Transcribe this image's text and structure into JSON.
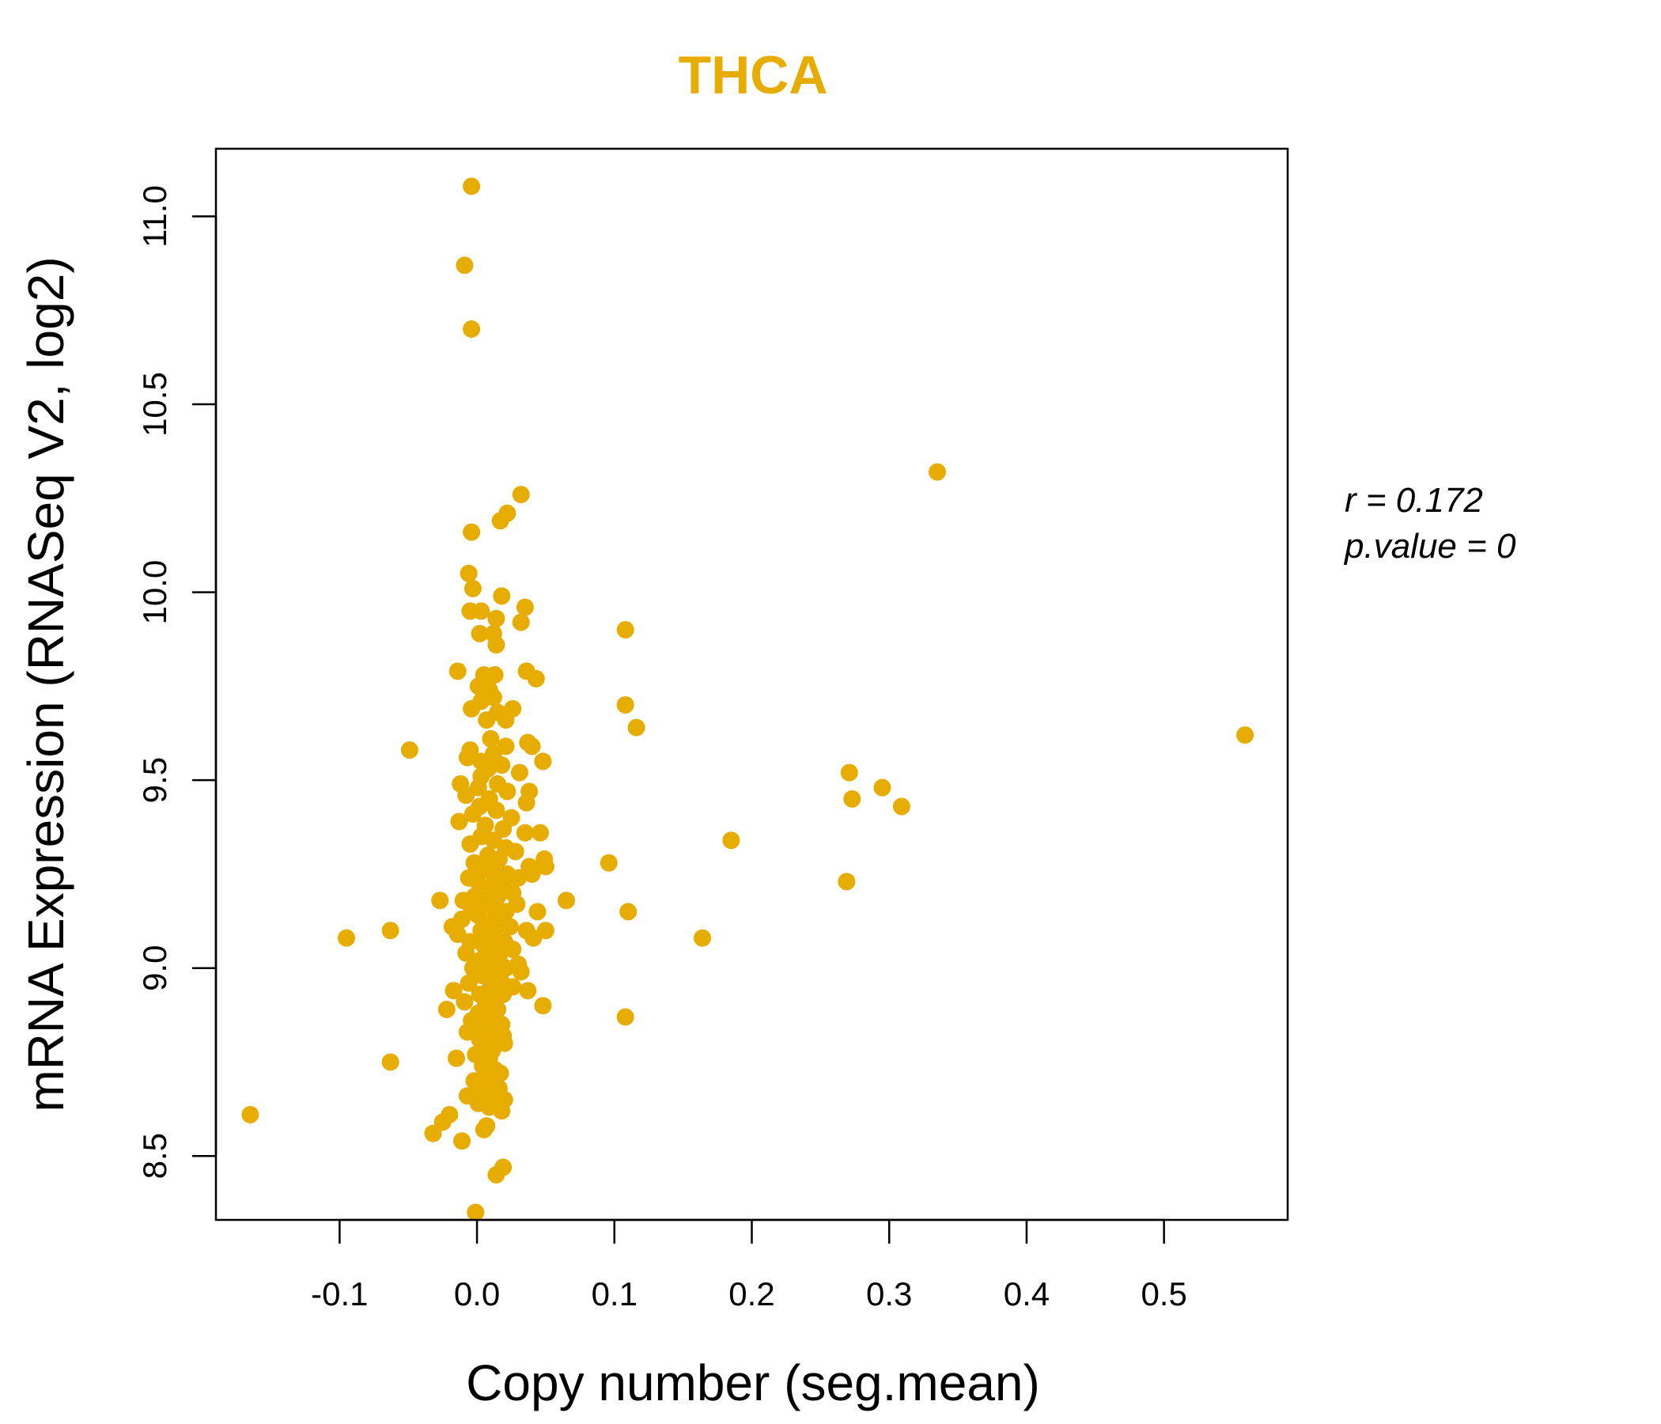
{
  "chart_data": {
    "type": "scatter",
    "title": "THCA",
    "xlabel": "Copy number (seg.mean)",
    "ylabel": "mRNA Expression (RNASeq V2, log2)",
    "xlim": [
      -0.19,
      0.59
    ],
    "ylim": [
      8.33,
      11.18
    ],
    "x_ticks": [
      -0.1,
      0.0,
      0.1,
      0.2,
      0.3,
      0.4,
      0.5
    ],
    "x_tick_labels": [
      "-0.1",
      "0.0",
      "0.1",
      "0.2",
      "0.3",
      "0.4",
      "0.5"
    ],
    "y_ticks": [
      8.5,
      9.0,
      9.5,
      10.0,
      10.5,
      11.0
    ],
    "y_tick_labels": [
      "8.5",
      "9.0",
      "9.5",
      "10.0",
      "10.5",
      "11.0"
    ],
    "grid": false,
    "point_color": "#E6AC00",
    "annotations": {
      "r": "r = 0.172",
      "p": "p.value = 0"
    },
    "points": [
      [
        -0.004,
        11.08
      ],
      [
        -0.009,
        10.87
      ],
      [
        -0.004,
        10.7
      ],
      [
        0.335,
        10.32
      ],
      [
        0.032,
        10.26
      ],
      [
        0.022,
        10.21
      ],
      [
        0.017,
        10.19
      ],
      [
        -0.004,
        10.16
      ],
      [
        -0.006,
        10.05
      ],
      [
        -0.003,
        10.01
      ],
      [
        0.018,
        9.99
      ],
      [
        0.035,
        9.96
      ],
      [
        -0.005,
        9.95
      ],
      [
        0.003,
        9.95
      ],
      [
        0.014,
        9.93
      ],
      [
        0.032,
        9.92
      ],
      [
        0.108,
        9.9
      ],
      [
        0.012,
        9.89
      ],
      [
        0.002,
        9.89
      ],
      [
        0.014,
        9.86
      ],
      [
        -0.014,
        9.79
      ],
      [
        0.036,
        9.79
      ],
      [
        0.005,
        9.78
      ],
      [
        0.013,
        9.78
      ],
      [
        0.043,
        9.77
      ],
      [
        0.001,
        9.75
      ],
      [
        0.009,
        9.74
      ],
      [
        0.012,
        9.72
      ],
      [
        0.003,
        9.71
      ],
      [
        0.108,
        9.7
      ],
      [
        0.026,
        9.69
      ],
      [
        -0.004,
        9.69
      ],
      [
        0.015,
        9.68
      ],
      [
        0.021,
        9.66
      ],
      [
        0.007,
        9.66
      ],
      [
        0.116,
        9.64
      ],
      [
        0.559,
        9.62
      ],
      [
        0.01,
        9.61
      ],
      [
        0.037,
        9.6
      ],
      [
        0.04,
        9.59
      ],
      [
        -0.049,
        9.58
      ],
      [
        0.021,
        9.59
      ],
      [
        -0.005,
        9.58
      ],
      [
        -0.007,
        9.56
      ],
      [
        0.003,
        9.55
      ],
      [
        0.012,
        9.57
      ],
      [
        0.048,
        9.55
      ],
      [
        0.018,
        9.54
      ],
      [
        0.008,
        9.53
      ],
      [
        0.031,
        9.52
      ],
      [
        0.271,
        9.52
      ],
      [
        0.003,
        9.51
      ],
      [
        -0.012,
        9.49
      ],
      [
        0.015,
        9.49
      ],
      [
        0.001,
        9.48
      ],
      [
        0.295,
        9.48
      ],
      [
        0.022,
        9.47
      ],
      [
        0.038,
        9.47
      ],
      [
        -0.008,
        9.46
      ],
      [
        0.009,
        9.45
      ],
      [
        0.273,
        9.45
      ],
      [
        0.036,
        9.44
      ],
      [
        0.002,
        9.43
      ],
      [
        0.309,
        9.43
      ],
      [
        0.014,
        9.42
      ],
      [
        -0.003,
        9.41
      ],
      [
        0.025,
        9.4
      ],
      [
        -0.013,
        9.39
      ],
      [
        0.006,
        9.38
      ],
      [
        0.019,
        9.37
      ],
      [
        0.035,
        9.36
      ],
      [
        0.046,
        9.36
      ],
      [
        0.003,
        9.35
      ],
      [
        0.012,
        9.34
      ],
      [
        0.185,
        9.34
      ],
      [
        -0.005,
        9.33
      ],
      [
        0.021,
        9.32
      ],
      [
        0.028,
        9.31
      ],
      [
        0.008,
        9.3
      ],
      [
        0.016,
        9.29
      ],
      [
        0.049,
        9.29
      ],
      [
        -0.002,
        9.28
      ],
      [
        0.096,
        9.28
      ],
      [
        0.011,
        9.27
      ],
      [
        0.038,
        9.27
      ],
      [
        0.05,
        9.27
      ],
      [
        0.004,
        9.26
      ],
      [
        0.022,
        9.25
      ],
      [
        0.04,
        9.25
      ],
      [
        -0.006,
        9.24
      ],
      [
        0.013,
        9.24
      ],
      [
        0.03,
        9.24
      ],
      [
        0.269,
        9.23
      ],
      [
        0.002,
        9.22
      ],
      [
        0.019,
        9.22
      ],
      [
        0.009,
        9.21
      ],
      [
        0.026,
        9.2
      ],
      [
        -0.002,
        9.19
      ],
      [
        0.015,
        9.19
      ],
      [
        -0.027,
        9.18
      ],
      [
        0.065,
        9.18
      ],
      [
        -0.01,
        9.18
      ],
      [
        0.006,
        9.17
      ],
      [
        0.029,
        9.17
      ],
      [
        0.012,
        9.16
      ],
      [
        -0.004,
        9.15
      ],
      [
        0.021,
        9.15
      ],
      [
        0.044,
        9.15
      ],
      [
        0.11,
        9.15
      ],
      [
        0.001,
        9.14
      ],
      [
        -0.011,
        9.13
      ],
      [
        0.017,
        9.13
      ],
      [
        0.008,
        9.12
      ],
      [
        -0.018,
        9.11
      ],
      [
        0.024,
        9.11
      ],
      [
        0.003,
        9.1
      ],
      [
        -0.063,
        9.1
      ],
      [
        0.036,
        9.1
      ],
      [
        0.05,
        9.1
      ],
      [
        0.013,
        9.09
      ],
      [
        -0.014,
        9.09
      ],
      [
        0.009,
        9.08
      ],
      [
        -0.095,
        9.08
      ],
      [
        0.164,
        9.08
      ],
      [
        0.041,
        9.08
      ],
      [
        0.02,
        9.07
      ],
      [
        -0.005,
        9.07
      ],
      [
        0.005,
        9.06
      ],
      [
        0.026,
        9.05
      ],
      [
        0.011,
        9.05
      ],
      [
        -0.008,
        9.04
      ],
      [
        0.016,
        9.03
      ],
      [
        0.002,
        9.02
      ],
      [
        0.03,
        9.01
      ],
      [
        0.008,
        9.01
      ],
      [
        -0.003,
        9.0
      ],
      [
        0.021,
        9.0
      ],
      [
        0.013,
        8.99
      ],
      [
        0.032,
        8.99
      ],
      [
        0.004,
        8.98
      ],
      [
        0.017,
        8.97
      ],
      [
        -0.006,
        8.96
      ],
      [
        0.01,
        8.95
      ],
      [
        0.026,
        8.95
      ],
      [
        -0.017,
        8.94
      ],
      [
        0.037,
        8.94
      ],
      [
        0.019,
        8.93
      ],
      [
        0.002,
        8.93
      ],
      [
        0.012,
        8.92
      ],
      [
        -0.009,
        8.91
      ],
      [
        0.006,
        8.9
      ],
      [
        0.048,
        8.9
      ],
      [
        -0.022,
        8.89
      ],
      [
        0.015,
        8.89
      ],
      [
        0.001,
        8.88
      ],
      [
        0.108,
        8.87
      ],
      [
        0.009,
        8.87
      ],
      [
        -0.004,
        8.86
      ],
      [
        0.018,
        8.85
      ],
      [
        0.004,
        8.84
      ],
      [
        0.011,
        8.83
      ],
      [
        -0.007,
        8.83
      ],
      [
        0.019,
        8.82
      ],
      [
        0.002,
        8.81
      ],
      [
        0.014,
        8.8
      ],
      [
        0.02,
        8.8
      ],
      [
        0.006,
        8.79
      ],
      [
        0.011,
        8.78
      ],
      [
        -0.001,
        8.77
      ],
      [
        -0.015,
        8.76
      ],
      [
        0.009,
        8.76
      ],
      [
        -0.063,
        8.75
      ],
      [
        0.004,
        8.74
      ],
      [
        0.013,
        8.73
      ],
      [
        0.017,
        8.72
      ],
      [
        0.007,
        8.71
      ],
      [
        -0.002,
        8.7
      ],
      [
        0.011,
        8.69
      ],
      [
        0.016,
        8.68
      ],
      [
        0.003,
        8.67
      ],
      [
        -0.007,
        8.66
      ],
      [
        0.013,
        8.66
      ],
      [
        0.02,
        8.65
      ],
      [
        0.001,
        8.64
      ],
      [
        0.009,
        8.63
      ],
      [
        0.018,
        8.62
      ],
      [
        -0.02,
        8.61
      ],
      [
        -0.165,
        8.61
      ],
      [
        -0.025,
        8.59
      ],
      [
        0.007,
        8.58
      ],
      [
        0.005,
        8.57
      ],
      [
        -0.032,
        8.56
      ],
      [
        -0.011,
        8.54
      ],
      [
        0.019,
        8.47
      ],
      [
        0.014,
        8.45
      ],
      [
        -0.001,
        8.35
      ]
    ]
  }
}
